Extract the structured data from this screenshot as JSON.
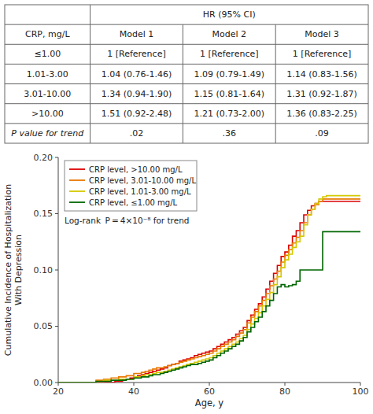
{
  "chart_data": [
    {
      "type": "table",
      "header": "HR (95% CI)",
      "columns": [
        "CRP, mg/L",
        "Model 1",
        "Model 2",
        "Model 3"
      ],
      "rows": [
        [
          "≤1.00",
          "1 [Reference]",
          "1 [Reference]",
          "1 [Reference]"
        ],
        [
          "1.01-3.00",
          "1.04 (0.76-1.46)",
          "1.09 (0.79-1.49)",
          "1.14 (0.83-1.56)"
        ],
        [
          "3.01-10.00",
          "1.34 (0.94-1.90)",
          "1.15 (0.81-1.64)",
          "1.31 (0.92-1.87)"
        ],
        [
          ">10.00",
          "1.51 (0.92-2.48)",
          "1.21 (0.73-2.00)",
          "1.36 (0.83-2.25)"
        ],
        [
          "P value for trend",
          ".02",
          ".36",
          ".09"
        ]
      ]
    },
    {
      "type": "step",
      "xlabel": "Age, y",
      "ylabel": "Cumulative Incidence of Hospitalization\nWith Depression",
      "annotation": "Log-rank  P = 4×10⁻⁸ for trend",
      "xlim": [
        20,
        100
      ],
      "ylim": [
        0.0,
        0.2
      ],
      "xticks": [
        20,
        40,
        60,
        80,
        100
      ],
      "yticks": [
        {
          "value": 0.0,
          "label": "0.00"
        },
        {
          "value": 0.05,
          "label": "0.05"
        },
        {
          "value": 0.1,
          "label": "0.10"
        },
        {
          "value": 0.15,
          "label": "0.15"
        },
        {
          "value": 0.2,
          "label": "0.20"
        }
      ],
      "legend": "upper left",
      "series": [
        {
          "name": "CRP level, >10.00 mg/L",
          "color": "#dd0000",
          "x": [
            20,
            28,
            30,
            33,
            35,
            37,
            38,
            39,
            40,
            41,
            42,
            43,
            44,
            45,
            46,
            47,
            48,
            49,
            50,
            51,
            52,
            53,
            54,
            55,
            56,
            57,
            58,
            59,
            60,
            61,
            62,
            63,
            64,
            65,
            66,
            67,
            68,
            69,
            70,
            71,
            72,
            73,
            74,
            75,
            76,
            77,
            78,
            79,
            80,
            81,
            82,
            83,
            84,
            85,
            86,
            87,
            88,
            89,
            90,
            91,
            92,
            95,
            100
          ],
          "values": [
            0.0,
            0.0,
            0.0,
            0.0,
            0.001,
            0.002,
            0.003,
            0.004,
            0.005,
            0.006,
            0.007,
            0.008,
            0.009,
            0.01,
            0.011,
            0.012,
            0.013,
            0.015,
            0.016,
            0.017,
            0.019,
            0.02,
            0.021,
            0.022,
            0.024,
            0.025,
            0.026,
            0.027,
            0.028,
            0.03,
            0.032,
            0.034,
            0.036,
            0.038,
            0.04,
            0.043,
            0.046,
            0.049,
            0.055,
            0.06,
            0.065,
            0.07,
            0.076,
            0.083,
            0.09,
            0.097,
            0.104,
            0.112,
            0.116,
            0.122,
            0.13,
            0.135,
            0.142,
            0.149,
            0.153,
            0.157,
            0.159,
            0.161,
            0.161,
            0.161,
            0.161,
            0.161,
            0.161
          ]
        },
        {
          "name": "CRP level, 3.01-10.00 mg/L",
          "color": "#e87800",
          "x": [
            20,
            30,
            32,
            34,
            36,
            38,
            40,
            41,
            42,
            43,
            44,
            45,
            46,
            47,
            48,
            49,
            50,
            51,
            52,
            53,
            54,
            55,
            56,
            57,
            58,
            59,
            60,
            61,
            62,
            63,
            64,
            65,
            66,
            67,
            68,
            69,
            70,
            71,
            72,
            73,
            74,
            75,
            76,
            77,
            78,
            79,
            80,
            81,
            82,
            83,
            84,
            85,
            86,
            87,
            88,
            89,
            90,
            91,
            92,
            93,
            94,
            95,
            100
          ],
          "values": [
            0.0,
            0.002,
            0.003,
            0.004,
            0.005,
            0.006,
            0.008,
            0.008,
            0.009,
            0.01,
            0.011,
            0.012,
            0.013,
            0.013,
            0.014,
            0.015,
            0.016,
            0.017,
            0.018,
            0.019,
            0.02,
            0.021,
            0.022,
            0.023,
            0.024,
            0.025,
            0.026,
            0.028,
            0.03,
            0.032,
            0.034,
            0.036,
            0.038,
            0.041,
            0.044,
            0.047,
            0.053,
            0.058,
            0.063,
            0.068,
            0.073,
            0.079,
            0.086,
            0.092,
            0.099,
            0.107,
            0.113,
            0.118,
            0.124,
            0.129,
            0.135,
            0.142,
            0.149,
            0.154,
            0.158,
            0.161,
            0.163,
            0.163,
            0.163,
            0.163,
            0.163,
            0.163,
            0.163
          ]
        },
        {
          "name": "CRP level, 1.01-3.00 mg/L",
          "color": "#d4c800",
          "x": [
            20,
            30,
            32,
            34,
            36,
            38,
            40,
            41,
            42,
            43,
            44,
            45,
            46,
            47,
            48,
            49,
            50,
            51,
            52,
            53,
            54,
            55,
            56,
            57,
            58,
            59,
            60,
            61,
            62,
            63,
            64,
            65,
            66,
            67,
            68,
            69,
            70,
            71,
            72,
            73,
            74,
            75,
            76,
            77,
            78,
            79,
            80,
            81,
            82,
            83,
            84,
            85,
            86,
            87,
            88,
            89,
            90,
            91,
            92,
            93,
            94,
            95,
            96,
            100
          ],
          "values": [
            0.0,
            0.001,
            0.002,
            0.002,
            0.003,
            0.003,
            0.005,
            0.005,
            0.006,
            0.007,
            0.007,
            0.008,
            0.009,
            0.009,
            0.01,
            0.011,
            0.012,
            0.013,
            0.014,
            0.015,
            0.016,
            0.017,
            0.018,
            0.019,
            0.02,
            0.021,
            0.022,
            0.024,
            0.026,
            0.028,
            0.03,
            0.032,
            0.034,
            0.036,
            0.039,
            0.042,
            0.047,
            0.052,
            0.057,
            0.062,
            0.068,
            0.074,
            0.08,
            0.087,
            0.094,
            0.102,
            0.109,
            0.114,
            0.12,
            0.125,
            0.13,
            0.14,
            0.149,
            0.154,
            0.159,
            0.163,
            0.165,
            0.166,
            0.166,
            0.166,
            0.166,
            0.166,
            0.166,
            0.166
          ]
        },
        {
          "name": "CRP level, ≤1.00 mg/L",
          "color": "#006600",
          "x": [
            20,
            30,
            32,
            34,
            36,
            38,
            40,
            41,
            42,
            43,
            44,
            45,
            46,
            47,
            48,
            49,
            50,
            51,
            52,
            53,
            54,
            55,
            56,
            57,
            58,
            59,
            60,
            61,
            62,
            63,
            64,
            65,
            66,
            67,
            68,
            69,
            70,
            71,
            72,
            73,
            74,
            75,
            76,
            77,
            78,
            79,
            80,
            81,
            82,
            83,
            84,
            85,
            86,
            87,
            88,
            89,
            90,
            91,
            92,
            93,
            95,
            100
          ],
          "values": [
            0.0,
            0.001,
            0.001,
            0.002,
            0.002,
            0.003,
            0.004,
            0.004,
            0.005,
            0.005,
            0.006,
            0.007,
            0.007,
            0.008,
            0.009,
            0.01,
            0.011,
            0.012,
            0.013,
            0.014,
            0.015,
            0.016,
            0.016,
            0.017,
            0.018,
            0.019,
            0.02,
            0.022,
            0.024,
            0.026,
            0.028,
            0.03,
            0.032,
            0.034,
            0.037,
            0.04,
            0.045,
            0.049,
            0.054,
            0.058,
            0.063,
            0.068,
            0.073,
            0.079,
            0.085,
            0.087,
            0.085,
            0.086,
            0.087,
            0.09,
            0.1,
            0.1,
            0.1,
            0.1,
            0.1,
            0.1,
            0.134,
            0.134,
            0.134,
            0.134,
            0.134,
            0.134
          ]
        }
      ]
    }
  ]
}
